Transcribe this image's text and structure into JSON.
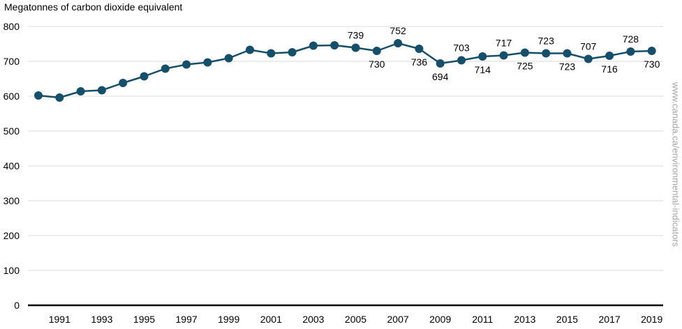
{
  "chart_data": {
    "type": "line",
    "ylabel": "Megatonnes of carbon dioxide equivalent",
    "x": [
      1990,
      1991,
      1992,
      1993,
      1994,
      1995,
      1996,
      1997,
      1998,
      1999,
      2000,
      2001,
      2002,
      2003,
      2004,
      2005,
      2006,
      2007,
      2008,
      2009,
      2010,
      2011,
      2012,
      2013,
      2014,
      2015,
      2016,
      2017,
      2018,
      2019
    ],
    "series": [
      {
        "values": [
          602,
          596,
          614,
          617,
          638,
          657,
          679,
          691,
          697,
          709,
          733,
          723,
          726,
          745,
          746,
          739,
          730,
          752,
          736,
          694,
          703,
          714,
          717,
          725,
          723,
          723,
          707,
          716,
          728,
          730
        ],
        "color": "#154f6a"
      }
    ],
    "data_labels": [
      {
        "x": 2005,
        "value": 739,
        "position": "above"
      },
      {
        "x": 2006,
        "value": 730,
        "position": "below"
      },
      {
        "x": 2007,
        "value": 752,
        "position": "above"
      },
      {
        "x": 2008,
        "value": 736,
        "position": "below"
      },
      {
        "x": 2009,
        "value": 694,
        "position": "below"
      },
      {
        "x": 2010,
        "value": 703,
        "position": "above"
      },
      {
        "x": 2011,
        "value": 714,
        "position": "below"
      },
      {
        "x": 2012,
        "value": 717,
        "position": "above"
      },
      {
        "x": 2013,
        "value": 725,
        "position": "below"
      },
      {
        "x": 2014,
        "value": 723,
        "position": "above"
      },
      {
        "x": 2015,
        "value": 723,
        "position": "below"
      },
      {
        "x": 2016,
        "value": 707,
        "position": "above"
      },
      {
        "x": 2017,
        "value": 716,
        "position": "below"
      },
      {
        "x": 2018,
        "value": 728,
        "position": "above"
      },
      {
        "x": 2019,
        "value": 730,
        "position": "below"
      }
    ],
    "ylim": [
      0,
      800
    ],
    "yticks": [
      0,
      100,
      200,
      300,
      400,
      500,
      600,
      700,
      800
    ],
    "xtick_labels": [
      "1991",
      "1993",
      "1995",
      "1997",
      "1999",
      "2001",
      "2003",
      "2005",
      "2007",
      "2009",
      "2011",
      "2013",
      "2015",
      "2017",
      "2019"
    ],
    "grid": true,
    "watermark": "www.canada.ca/environmental-indicators"
  }
}
